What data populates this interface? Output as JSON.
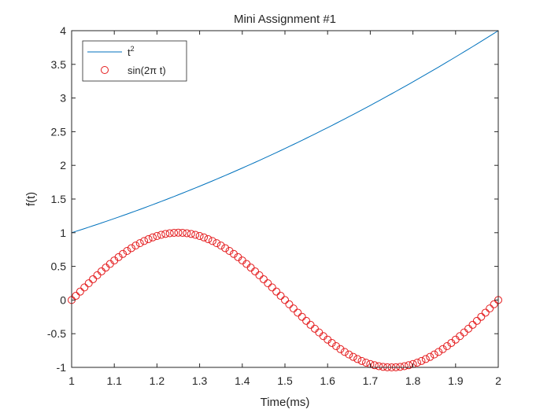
{
  "chart_data": {
    "type": "line",
    "title": "Mini Assignment #1",
    "xlabel": "Time(ms)",
    "ylabel": "f(t)",
    "xlim": [
      1,
      2
    ],
    "ylim": [
      -1,
      4
    ],
    "xticks": [
      "1",
      "1.1",
      "1.2",
      "1.3",
      "1.4",
      "1.5",
      "1.6",
      "1.7",
      "1.8",
      "1.9",
      "2"
    ],
    "yticks": [
      "-1",
      "-0.5",
      "0",
      "0.5",
      "1",
      "1.5",
      "2",
      "2.5",
      "3",
      "3.5",
      "4"
    ],
    "grid": false,
    "legend_placement": "top-left",
    "series": [
      {
        "name": "t",
        "name_superscript": "2",
        "style": "solid-line",
        "color": "#0072BD",
        "x_start": 1,
        "x_end": 2,
        "samples": 101,
        "function": "t^2"
      },
      {
        "name": "sin(2π t)",
        "style": "circle-markers",
        "color": "#E41A1C",
        "x_start": 1,
        "x_end": 2,
        "samples": 101,
        "function": "sin(2*pi*t)"
      }
    ]
  }
}
